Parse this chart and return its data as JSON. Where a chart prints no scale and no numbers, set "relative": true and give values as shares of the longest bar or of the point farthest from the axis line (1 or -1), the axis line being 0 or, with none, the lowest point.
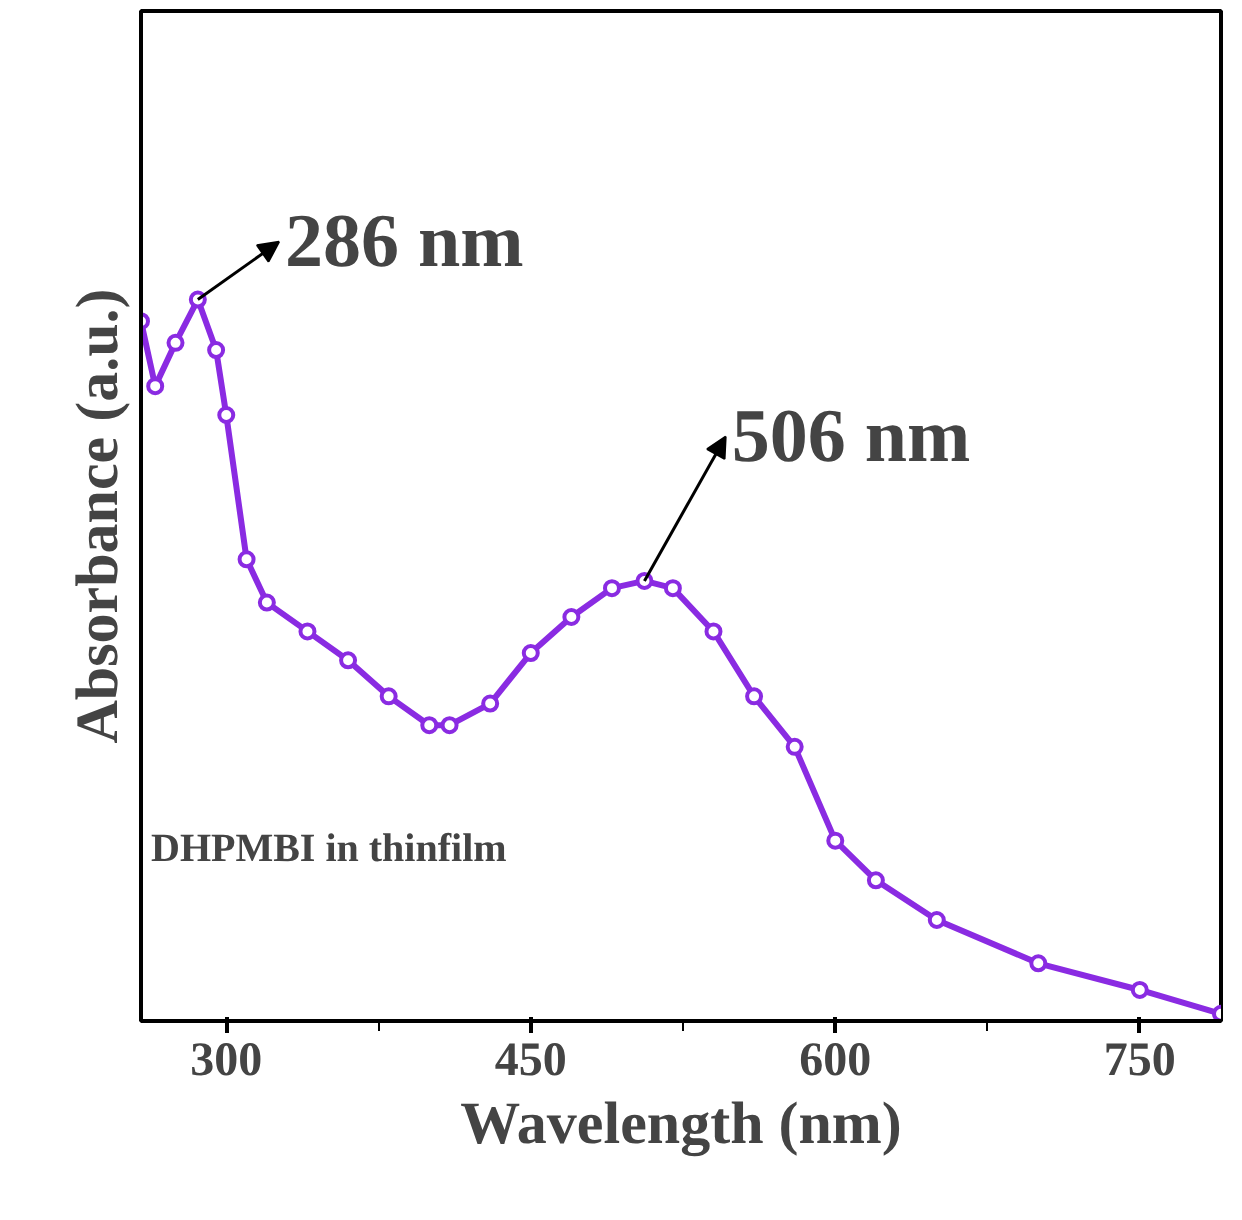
{
  "chart_data": {
    "type": "line",
    "xlabel": "Wavelength (nm)",
    "ylabel": "Absorbance (a.u.)",
    "relative": true,
    "marker": "circle",
    "grid": false,
    "xlim": [
      258,
      790
    ],
    "xticks": [
      300,
      450,
      600,
      750
    ],
    "tick_labels": "x",
    "x": [
      258,
      265,
      275,
      286,
      295,
      300,
      310,
      320,
      340,
      360,
      380,
      400,
      410,
      430,
      450,
      470,
      490,
      506,
      520,
      540,
      560,
      580,
      600,
      620,
      650,
      700,
      750,
      790
    ],
    "series": [
      {
        "color": "#8a2be2",
        "values": [
          0.97,
          0.88,
          0.94,
          1.0,
          0.93,
          0.84,
          0.64,
          0.58,
          0.54,
          0.5,
          0.45,
          0.41,
          0.41,
          0.44,
          0.51,
          0.56,
          0.6,
          0.61,
          0.6,
          0.54,
          0.45,
          0.38,
          0.25,
          0.195,
          0.14,
          0.08,
          0.043,
          0.01
        ]
      }
    ],
    "annotations": [
      {
        "text": "286 nm",
        "x": 286,
        "y": 1.0
      },
      {
        "text": "506 nm",
        "x": 506,
        "y": 0.61
      },
      "DHPMBI in thinfilm"
    ]
  }
}
